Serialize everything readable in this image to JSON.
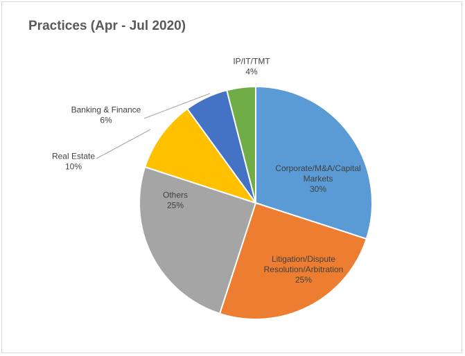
{
  "chart_data": {
    "type": "pie",
    "title": "Practices (Apr - Jul 2020)",
    "start_angle_deg": 0,
    "direction": "clockwise",
    "slices": [
      {
        "label_lines": [
          "Corporate/M&A/Capital",
          "Markets"
        ],
        "value": 30,
        "value_label": "30%",
        "color": "#5b9bd5"
      },
      {
        "label_lines": [
          "Litigation/Dispute",
          "Resolution/Arbitration"
        ],
        "value": 25,
        "value_label": "25%",
        "color": "#ed7d31"
      },
      {
        "label_lines": [
          "Others"
        ],
        "value": 25,
        "value_label": "25%",
        "color": "#a5a5a5"
      },
      {
        "label_lines": [
          "Real Estate"
        ],
        "value": 10,
        "value_label": "10%",
        "color": "#ffc000"
      },
      {
        "label_lines": [
          "Banking & Finance"
        ],
        "value": 6,
        "value_label": "6%",
        "color": "#4472c4"
      },
      {
        "label_lines": [
          "IP/IT/TMT"
        ],
        "value": 4,
        "value_label": "4%",
        "color": "#70ad47"
      }
    ]
  }
}
